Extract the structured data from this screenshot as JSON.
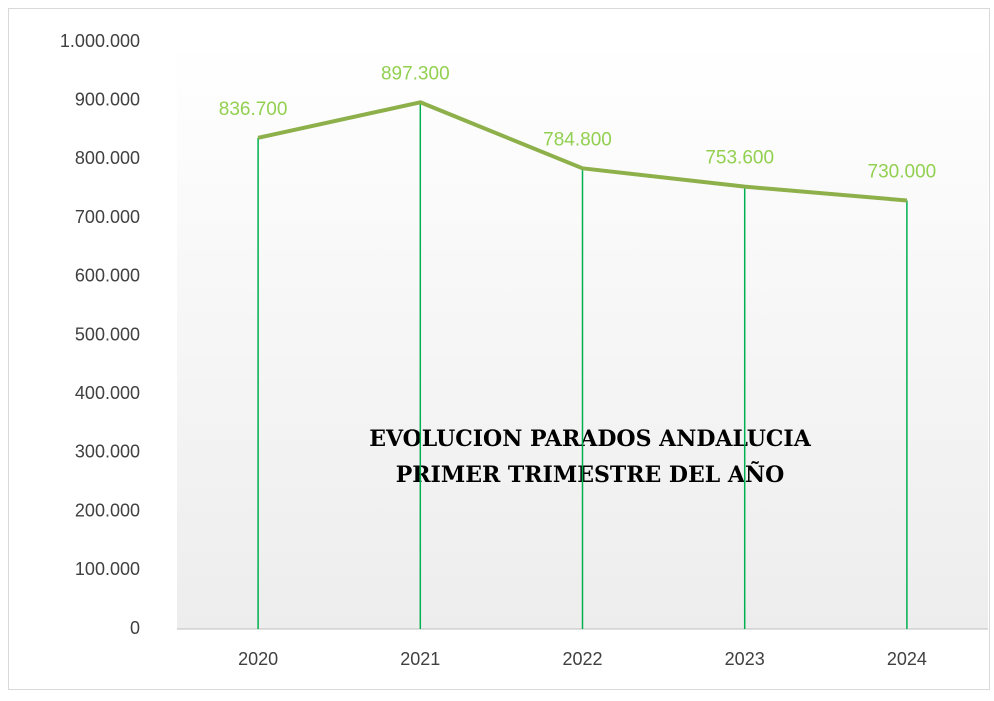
{
  "chart_data": {
    "type": "line",
    "title": [
      "EVOLUCION PARADOS ANDALUCIA",
      "PRIMER TRIMESTRE DEL AÑO"
    ],
    "categories": [
      "2020",
      "2021",
      "2022",
      "2023",
      "2024"
    ],
    "values": [
      836700,
      897300,
      784800,
      753600,
      730000
    ],
    "value_labels": [
      "836.700",
      "897.300",
      "784.800",
      "753.600",
      "730.000"
    ],
    "color": "#8db04a",
    "drop_line_color": "#00b050",
    "label_color": "#92d050",
    "ylim": [
      0,
      1000000
    ],
    "yticks": [
      0,
      {
        "value": 100000,
        "label": "100.000"
      },
      {
        "value": 200000,
        "label": "200.000"
      },
      {
        "value": 300000,
        "label": "300.000"
      },
      {
        "value": 400000,
        "label": "400.000"
      },
      {
        "value": 500000,
        "label": "500.000"
      },
      {
        "value": 600000,
        "label": "600.000"
      },
      {
        "value": 700000,
        "label": "700.000"
      },
      {
        "value": 800000,
        "label": "800.000"
      },
      {
        "value": 900000,
        "label": "900.000"
      },
      {
        "value": 1000000,
        "label": "1.000.000"
      }
    ],
    "grid": false
  }
}
